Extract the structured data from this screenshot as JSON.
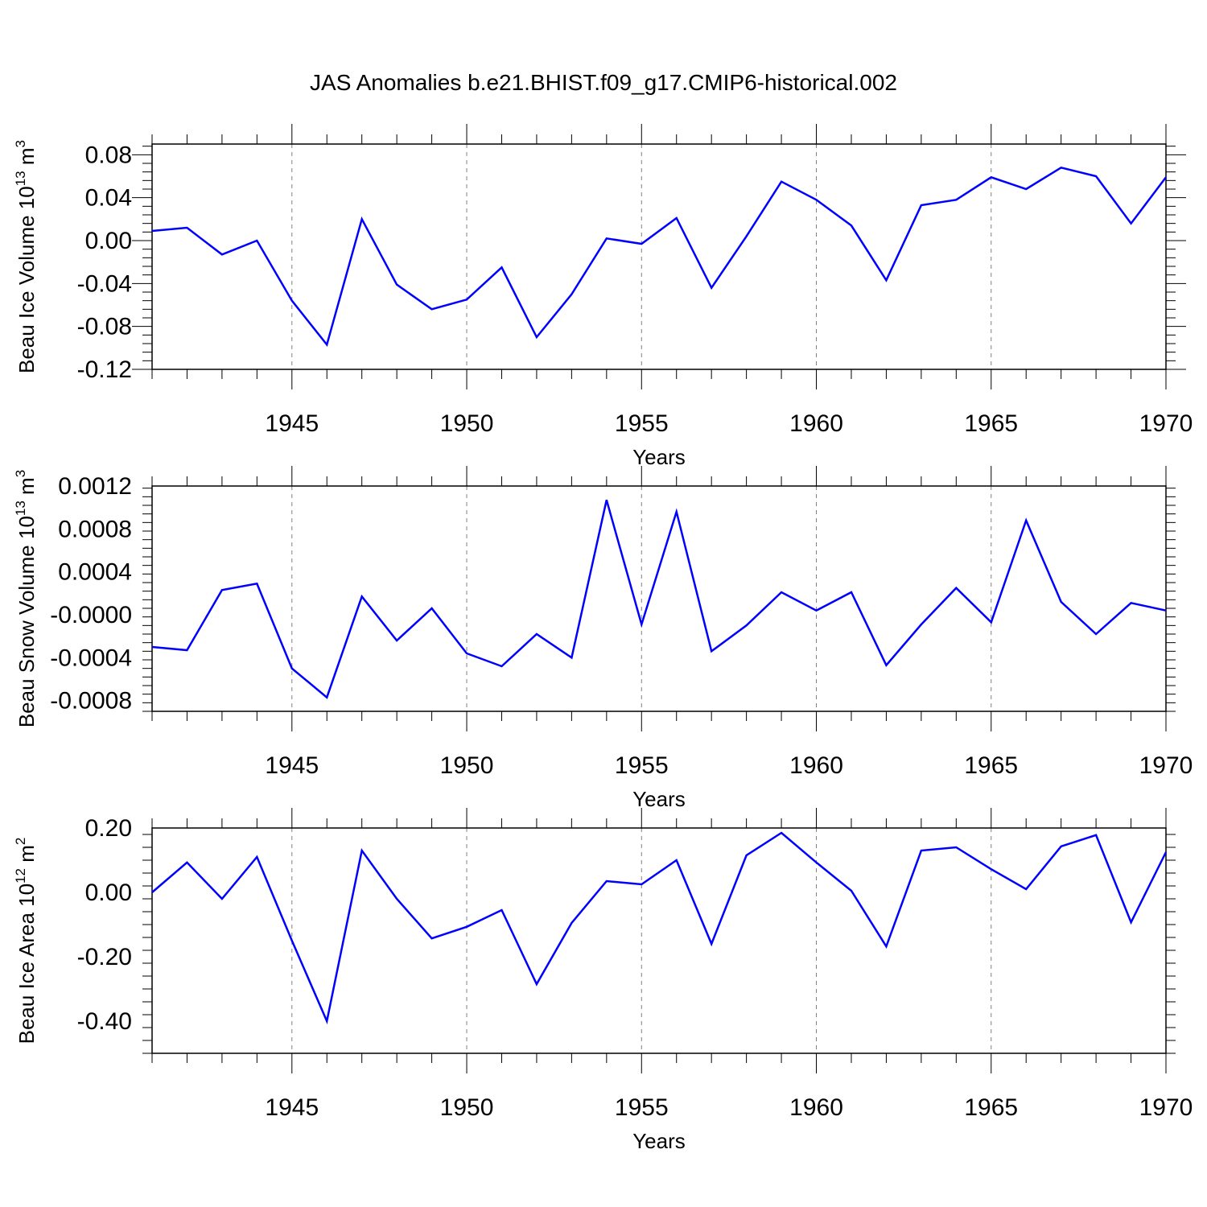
{
  "title": "JAS Anomalies b.e21.BHIST.f09_g17.CMIP6-historical.002",
  "colors": {
    "series": "#0000ff",
    "axis": "#000000",
    "grid": "#808080"
  },
  "chart_data": [
    {
      "type": "line",
      "title": "",
      "xlabel": "Years",
      "ylabel": "Beau Ice Volume 10",
      "ylabel_exponent": "13",
      "ylabel_unit": "m",
      "ylabel_unit_exponent": "3",
      "xlim": [
        1941,
        1970
      ],
      "ylim": [
        -0.12,
        0.09
      ],
      "xticks": [
        1945,
        1950,
        1955,
        1960,
        1965,
        1970
      ],
      "xtick_labels": [
        "1945",
        "1950",
        "1955",
        "1960",
        "1965",
        "1970"
      ],
      "yticks": [
        -0.12,
        -0.08,
        -0.04,
        0.0,
        0.04,
        0.08
      ],
      "ytick_labels": [
        "-0.12",
        "-0.08",
        "-0.04",
        "0.00",
        "0.04",
        "0.08"
      ],
      "grid": "vertical dashed at major x ticks",
      "series": [
        {
          "name": "Beau Ice Volume",
          "x": [
            1941,
            1942,
            1943,
            1944,
            1945,
            1946,
            1947,
            1948,
            1949,
            1950,
            1951,
            1952,
            1953,
            1954,
            1955,
            1956,
            1957,
            1958,
            1959,
            1960,
            1961,
            1962,
            1963,
            1964,
            1965,
            1966,
            1967,
            1968,
            1969,
            1970
          ],
          "values": [
            0.009,
            0.012,
            -0.013,
            0.0,
            -0.056,
            -0.097,
            0.02,
            -0.041,
            -0.064,
            -0.055,
            -0.025,
            -0.09,
            -0.05,
            0.002,
            -0.003,
            0.021,
            -0.044,
            0.004,
            0.055,
            0.038,
            0.014,
            -0.037,
            0.033,
            0.038,
            0.059,
            0.048,
            0.068,
            0.06,
            0.016,
            0.059
          ]
        }
      ]
    },
    {
      "type": "line",
      "title": "",
      "xlabel": "Years",
      "ylabel": "Beau Snow Volume 10",
      "ylabel_exponent": "13",
      "ylabel_unit": "m",
      "ylabel_unit_exponent": "3",
      "xlim": [
        1941,
        1970
      ],
      "ylim": [
        -0.0009,
        0.0012
      ],
      "xticks": [
        1945,
        1950,
        1955,
        1960,
        1965,
        1970
      ],
      "xtick_labels": [
        "1945",
        "1950",
        "1955",
        "1960",
        "1965",
        "1970"
      ],
      "yticks": [
        -0.0008,
        -0.0004,
        0.0,
        0.0004,
        0.0008,
        0.0012
      ],
      "ytick_labels": [
        "-0.0008",
        "-0.0004",
        "-0.0000",
        "0.0004",
        "0.0008",
        "0.0012"
      ],
      "grid": "vertical dashed at major x ticks",
      "series": [
        {
          "name": "Beau Snow Volume",
          "x": [
            1941,
            1942,
            1943,
            1944,
            1945,
            1946,
            1947,
            1948,
            1949,
            1950,
            1951,
            1952,
            1953,
            1954,
            1955,
            1956,
            1957,
            1958,
            1959,
            1960,
            1961,
            1962,
            1963,
            1964,
            1965,
            1966,
            1967,
            1968,
            1969,
            1970
          ],
          "values": [
            -0.0003,
            -0.00033,
            0.00023,
            0.00029,
            -0.0005,
            -0.00077,
            0.00017,
            -0.00024,
            6e-05,
            -0.00036,
            -0.00048,
            -0.00018,
            -0.0004,
            0.00107,
            -9e-05,
            0.00096,
            -0.00034,
            -0.0001,
            0.00021,
            4e-05,
            0.00021,
            -0.00047,
            -9e-05,
            0.00025,
            -7e-05,
            0.00088,
            0.00012,
            -0.00018,
            0.00011,
            4e-05
          ]
        }
      ]
    },
    {
      "type": "line",
      "title": "",
      "xlabel": "Years",
      "ylabel": "Beau Ice Area 10",
      "ylabel_exponent": "12",
      "ylabel_unit": "m",
      "ylabel_unit_exponent": "2",
      "xlim": [
        1941,
        1970
      ],
      "ylim": [
        -0.5,
        0.2
      ],
      "xticks": [
        1945,
        1950,
        1955,
        1960,
        1965,
        1970
      ],
      "xtick_labels": [
        "1945",
        "1950",
        "1955",
        "1960",
        "1965",
        "1970"
      ],
      "yticks": [
        -0.4,
        -0.2,
        0.0,
        0.2
      ],
      "ytick_labels": [
        "-0.40",
        "-0.20",
        "0.00",
        "0.20"
      ],
      "grid": "vertical dashed at major x ticks",
      "series": [
        {
          "name": "Beau Ice Area",
          "x": [
            1941,
            1942,
            1943,
            1944,
            1945,
            1946,
            1947,
            1948,
            1949,
            1950,
            1951,
            1952,
            1953,
            1954,
            1955,
            1956,
            1957,
            1958,
            1959,
            1960,
            1961,
            1962,
            1963,
            1964,
            1965,
            1966,
            1967,
            1968,
            1969,
            1970
          ],
          "values": [
            0.0,
            0.093,
            -0.02,
            0.11,
            -0.15,
            -0.4,
            0.13,
            -0.02,
            -0.143,
            -0.107,
            -0.055,
            -0.285,
            -0.095,
            0.035,
            0.025,
            0.1,
            -0.16,
            0.115,
            0.185,
            0.093,
            0.005,
            -0.168,
            0.13,
            0.14,
            0.072,
            0.01,
            0.143,
            0.178,
            -0.093,
            0.125
          ]
        }
      ]
    }
  ]
}
